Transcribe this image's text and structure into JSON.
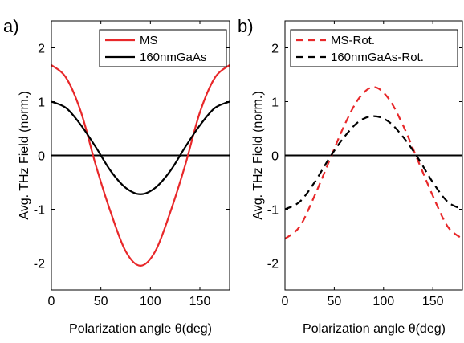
{
  "chart_data": [
    {
      "panel_label": "a)",
      "type": "line",
      "xlabel": "Polarization angle θ(deg)",
      "ylabel": "Avg. THz Field (norm.)",
      "xlim": [
        0,
        180
      ],
      "ylim": [
        -2.5,
        2.5
      ],
      "xticks": [
        "0",
        "50",
        "100",
        "150"
      ],
      "yticks": [
        "-2",
        "-1",
        "0",
        "1",
        "2"
      ],
      "legend_position": "top-right",
      "zero_line": true,
      "series": [
        {
          "name": "MS",
          "color": "#e8282a",
          "style": "solid",
          "x": [
            0,
            15,
            30,
            45,
            60,
            75,
            90,
            105,
            120,
            135,
            150,
            165,
            180
          ],
          "y": [
            1.68,
            1.44,
            0.8,
            -0.19,
            -1.06,
            -1.78,
            -2.05,
            -1.78,
            -1.06,
            -0.19,
            0.8,
            1.44,
            1.68
          ]
        },
        {
          "name": "160nmGaAs",
          "color": "#000000",
          "style": "solid",
          "x": [
            0,
            15,
            30,
            45,
            60,
            75,
            90,
            105,
            120,
            135,
            150,
            165,
            180
          ],
          "y": [
            1.0,
            0.88,
            0.56,
            0.15,
            -0.29,
            -0.6,
            -0.72,
            -0.6,
            -0.29,
            0.15,
            0.56,
            0.88,
            1.0
          ]
        }
      ]
    },
    {
      "panel_label": "b)",
      "type": "line",
      "xlabel": "Polarization angle θ(deg)",
      "ylabel": "Avg. THz Field (norm.)",
      "xlim": [
        0,
        180
      ],
      "ylim": [
        -2.5,
        2.5
      ],
      "xticks": [
        "0",
        "50",
        "100",
        "150"
      ],
      "yticks": [
        "-2",
        "-1",
        "0",
        "1",
        "2"
      ],
      "legend_position": "top-left",
      "zero_line": true,
      "series": [
        {
          "name": "MS-Rot.",
          "color": "#e8282a",
          "style": "dashed",
          "x": [
            0,
            15,
            30,
            45,
            60,
            75,
            90,
            105,
            120,
            135,
            150,
            165,
            180
          ],
          "y": [
            -1.55,
            -1.32,
            -0.75,
            -0.1,
            0.55,
            1.06,
            1.27,
            1.06,
            0.55,
            -0.1,
            -0.75,
            -1.32,
            -1.55
          ]
        },
        {
          "name": "160nmGaAs-Rot.",
          "color": "#000000",
          "style": "dashed",
          "x": [
            0,
            15,
            30,
            45,
            60,
            75,
            90,
            105,
            120,
            135,
            150,
            165,
            180
          ],
          "y": [
            -1.0,
            -0.86,
            -0.5,
            -0.05,
            0.34,
            0.63,
            0.73,
            0.63,
            0.34,
            -0.05,
            -0.5,
            -0.86,
            -1.0
          ]
        }
      ]
    }
  ]
}
